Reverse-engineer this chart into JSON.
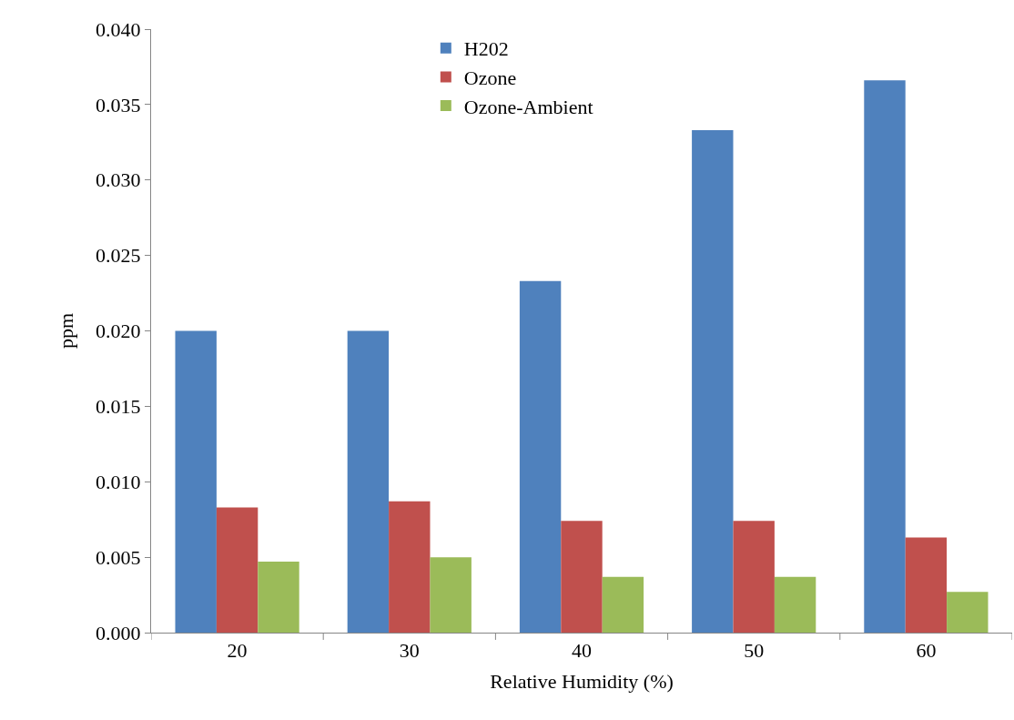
{
  "chart_data": {
    "type": "bar",
    "xlabel": "Relative Humidity (%)",
    "ylabel": "ppm",
    "categories": [
      "20",
      "30",
      "40",
      "50",
      "60"
    ],
    "series": [
      {
        "name": "H202",
        "color": "#4f81bd",
        "values": [
          0.02,
          0.02,
          0.0233,
          0.0333,
          0.0366
        ]
      },
      {
        "name": "Ozone",
        "color": "#c0504d",
        "values": [
          0.0083,
          0.0087,
          0.0074,
          0.0074,
          0.0063
        ]
      },
      {
        "name": "Ozone-Ambient",
        "color": "#9bbb59",
        "values": [
          0.0047,
          0.005,
          0.0037,
          0.0037,
          0.0027
        ]
      }
    ],
    "ylim": [
      0,
      0.04
    ],
    "yticks": [
      {
        "value": 0,
        "label": "0.000"
      },
      {
        "value": 0.005,
        "label": "0.005"
      },
      {
        "value": 0.01,
        "label": "0.010"
      },
      {
        "value": 0.015,
        "label": "0.015"
      },
      {
        "value": 0.02,
        "label": "0.020"
      },
      {
        "value": 0.025,
        "label": "0.025"
      },
      {
        "value": 0.03,
        "label": "0.030"
      },
      {
        "value": 0.035,
        "label": "0.035"
      },
      {
        "value": 0.04,
        "label": "0.040"
      }
    ],
    "grid": false,
    "legend": "top"
  }
}
